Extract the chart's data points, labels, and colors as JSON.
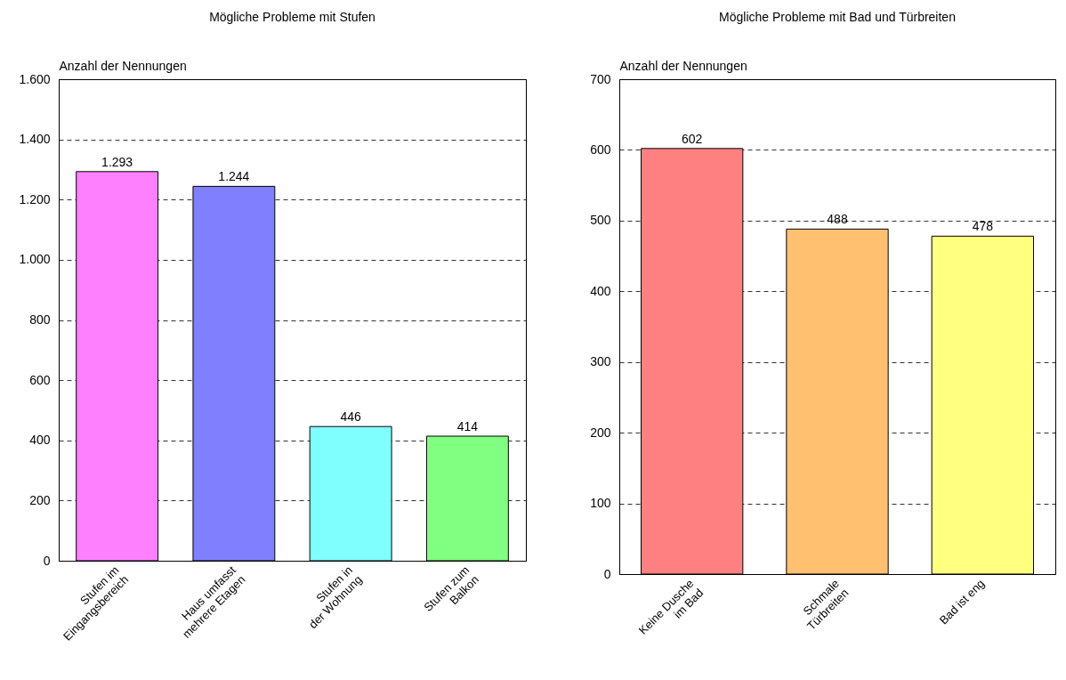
{
  "chart_data": [
    {
      "type": "bar",
      "title": "Mögliche Probleme mit Stufen",
      "ylabel": "Anzahl der Nennungen",
      "categories": [
        "Stufen im\nEingangsbereich",
        "Haus umfasst\nmehrere Etagen",
        "Stufen in\nder Wohnung",
        "Stufen zum\nBalkon"
      ],
      "values": [
        1293,
        1244,
        446,
        414
      ],
      "colors": [
        "#ff80ff",
        "#8080ff",
        "#80ffff",
        "#80ff80"
      ],
      "value_labels": [
        "1.293",
        "1.244",
        "446",
        "414"
      ],
      "ylim": [
        0,
        1600
      ],
      "yticks": [
        0,
        200,
        400,
        600,
        800,
        {
          "value": 1000,
          "label": "1.000"
        },
        {
          "value": 1200,
          "label": "1.200"
        },
        {
          "value": 1400,
          "label": "1.400"
        },
        {
          "value": 1600,
          "label": "1.600"
        }
      ],
      "grid": "y",
      "line_style": "dashed"
    },
    {
      "type": "bar",
      "title": "Mögliche Probleme mit Bad und Türbreiten",
      "ylabel": "Anzahl der Nennungen",
      "categories": [
        "Keine Dusche\nim Bad",
        "Schmale\nTürbreiten",
        "Bad ist eng"
      ],
      "values": [
        602,
        488,
        478
      ],
      "colors": [
        "#ff8080",
        "#ffc070",
        "#ffff80"
      ],
      "data_labels": true,
      "ylim": [
        0,
        700
      ],
      "yticks": [
        0,
        100,
        200,
        300,
        400,
        500,
        600,
        700
      ],
      "grid": "y",
      "line_style": "dashed"
    }
  ]
}
